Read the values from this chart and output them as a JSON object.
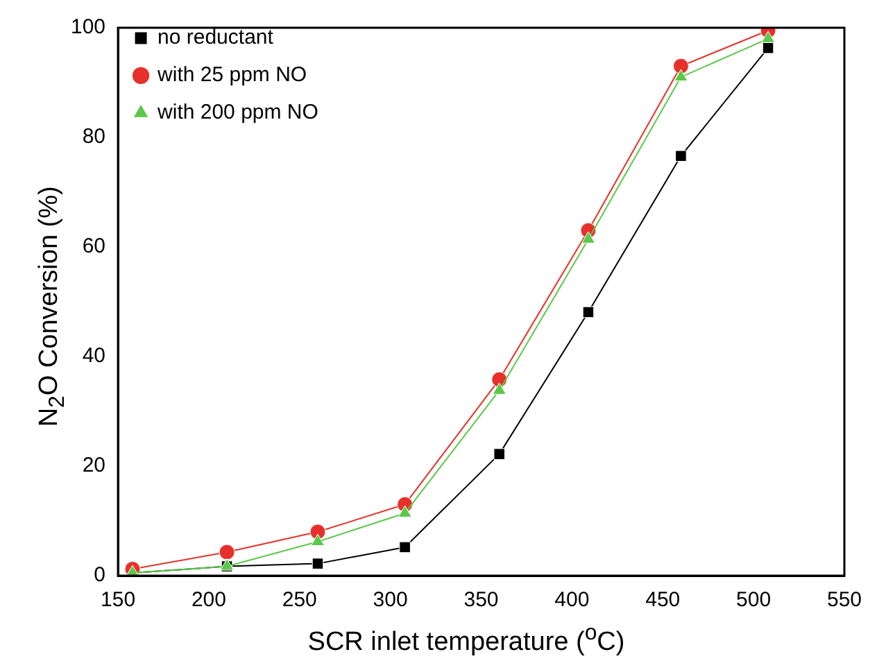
{
  "chart_data": {
    "type": "line",
    "xlabel": "SCR inlet temperature ($^{o}$C)",
    "ylabel": "N$_{2}$O Conversion (%)",
    "x": [
      158,
      210,
      260,
      308,
      360,
      409,
      460,
      508
    ],
    "series": [
      {
        "name": "no reductant",
        "color": "#000000",
        "marker": "square",
        "values": [
          0.5,
          1.7,
          2.2,
          5.2,
          22.2,
          48.1,
          76.6,
          96.3
        ]
      },
      {
        "name": "with 25 ppm NO",
        "color": "#e8302a",
        "marker": "circle",
        "values": [
          1.2,
          4.3,
          8,
          13,
          35.8,
          63,
          93,
          99.5
        ]
      },
      {
        "name": "with 200 ppm NO",
        "color": "#5cc84a",
        "marker": "triangle",
        "values": [
          0.5,
          1.7,
          6.2,
          11.4,
          33.8,
          61.4,
          91,
          98
        ]
      }
    ],
    "xlim": [
      150,
      550
    ],
    "xticks": [
      150,
      200,
      250,
      300,
      350,
      400,
      450,
      500,
      550
    ],
    "ylim": [
      0,
      100
    ],
    "yticks": [
      0,
      20,
      40,
      60,
      80,
      100
    ],
    "legend": "top left",
    "grid": false,
    "line_style": "solid"
  }
}
